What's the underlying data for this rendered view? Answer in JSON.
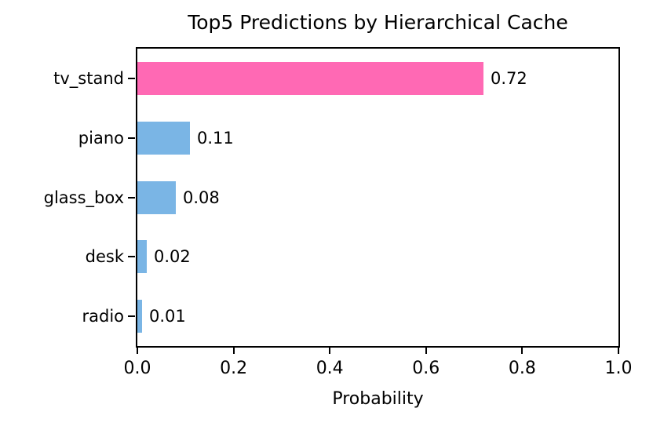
{
  "chart_data": {
    "type": "bar",
    "orientation": "horizontal",
    "title": "Top5 Predictions by Hierarchical Cache",
    "xlabel": "Probability",
    "ylabel": "",
    "categories": [
      "tv_stand",
      "piano",
      "glass_box",
      "desk",
      "radio"
    ],
    "values": [
      0.72,
      0.11,
      0.08,
      0.02,
      0.01
    ],
    "value_labels": [
      "0.72",
      "0.11",
      "0.08",
      "0.02",
      "0.01"
    ],
    "bar_colors": [
      "#ff69b4",
      "#7ab5e5",
      "#7ab5e5",
      "#7ab5e5",
      "#7ab5e5"
    ],
    "highlight_color": "#ff69b4",
    "default_color": "#7ab5e5",
    "xlim": [
      0.0,
      1.0
    ],
    "x_ticks": [
      0.0,
      0.2,
      0.4,
      0.6,
      0.8,
      1.0
    ],
    "x_tick_labels": [
      "0.0",
      "0.2",
      "0.4",
      "0.6",
      "0.8",
      "1.0"
    ],
    "grid": false,
    "legend": null,
    "frame": "full-box",
    "text_color": "#000000",
    "background_color": "#ffffff"
  }
}
